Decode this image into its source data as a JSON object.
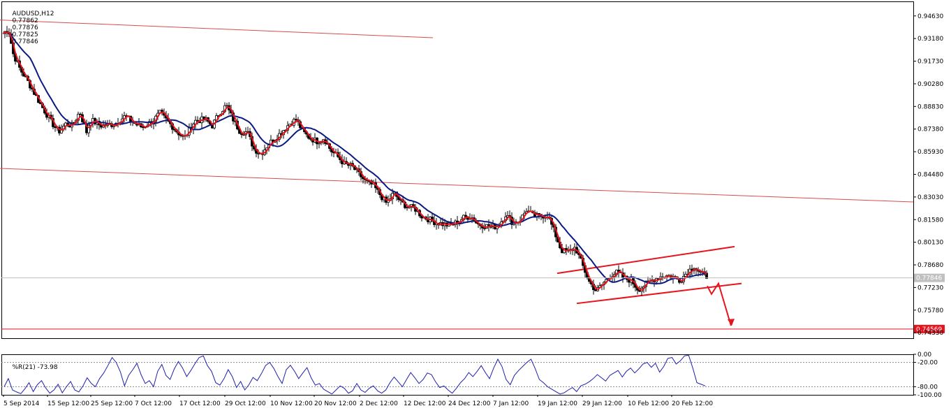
{
  "chart_data": [
    {
      "type": "candlestick",
      "title": "AUDUSD,H12",
      "quote": {
        "open": "0.77862",
        "high": "0.77876",
        "low": "0.77825",
        "close": "0.77846"
      },
      "ylim": [
        0.7398,
        0.9556
      ],
      "yticks": [
        "0.94630",
        "0.93180",
        "0.91730",
        "0.90280",
        "0.88830",
        "0.87380",
        "0.85930",
        "0.84480",
        "0.83030",
        "0.81580",
        "0.80130",
        "0.78680",
        "0.77230",
        "0.75780",
        "0.74330"
      ],
      "xticks": [
        "5 Sep 2014",
        "15 Sep 12:00",
        "25 Sep 12:00",
        "7 Oct 12:00",
        "17 Oct 12:00",
        "29 Oct 12:00",
        "10 Nov 12:00",
        "20 Nov 12:00",
        "2 Dec 12:00",
        "12 Dec 12:00",
        "24 Dec 12:00",
        "7 Jan 12:00",
        "19 Jan 12:00",
        "29 Jan 12:00",
        "10 Feb 12:00",
        "20 Feb 12:00"
      ],
      "price_label": "0.77846",
      "level_label": "0.74569",
      "level_value": 0.74569,
      "grid": false,
      "close_anchors": [
        [
          0,
          0.935
        ],
        [
          8,
          0.938
        ],
        [
          15,
          0.922
        ],
        [
          25,
          0.912
        ],
        [
          35,
          0.905
        ],
        [
          55,
          0.889
        ],
        [
          70,
          0.878
        ],
        [
          80,
          0.872
        ],
        [
          90,
          0.877
        ],
        [
          100,
          0.876
        ],
        [
          110,
          0.885
        ],
        [
          120,
          0.872
        ],
        [
          125,
          0.88
        ],
        [
          140,
          0.876
        ],
        [
          160,
          0.877
        ],
        [
          175,
          0.882
        ],
        [
          190,
          0.877
        ],
        [
          200,
          0.875
        ],
        [
          215,
          0.879
        ],
        [
          225,
          0.884
        ],
        [
          240,
          0.877
        ],
        [
          250,
          0.872
        ],
        [
          260,
          0.868
        ],
        [
          275,
          0.879
        ],
        [
          290,
          0.88
        ],
        [
          300,
          0.876
        ],
        [
          310,
          0.884
        ],
        [
          320,
          0.889
        ],
        [
          330,
          0.88
        ],
        [
          340,
          0.872
        ],
        [
          350,
          0.872
        ],
        [
          360,
          0.861
        ],
        [
          370,
          0.858
        ],
        [
          380,
          0.864
        ],
        [
          395,
          0.87
        ],
        [
          410,
          0.877
        ],
        [
          420,
          0.88
        ],
        [
          430,
          0.872
        ],
        [
          440,
          0.868
        ],
        [
          450,
          0.866
        ],
        [
          460,
          0.868
        ],
        [
          470,
          0.86
        ],
        [
          480,
          0.856
        ],
        [
          490,
          0.851
        ],
        [
          500,
          0.85
        ],
        [
          510,
          0.845
        ],
        [
          520,
          0.84
        ],
        [
          530,
          0.838
        ],
        [
          540,
          0.832
        ],
        [
          550,
          0.826
        ],
        [
          560,
          0.833
        ],
        [
          570,
          0.827
        ],
        [
          580,
          0.824
        ],
        [
          590,
          0.823
        ],
        [
          600,
          0.818
        ],
        [
          610,
          0.816
        ],
        [
          620,
          0.814
        ],
        [
          630,
          0.813
        ],
        [
          640,
          0.812
        ],
        [
          650,
          0.814
        ],
        [
          660,
          0.817
        ],
        [
          670,
          0.818
        ],
        [
          680,
          0.813
        ],
        [
          690,
          0.812
        ],
        [
          700,
          0.811
        ],
        [
          710,
          0.812
        ],
        [
          720,
          0.819
        ],
        [
          730,
          0.814
        ],
        [
          740,
          0.815
        ],
        [
          750,
          0.822
        ],
        [
          760,
          0.818
        ],
        [
          770,
          0.818
        ],
        [
          780,
          0.819
        ],
        [
          790,
          0.808
        ],
        [
          800,
          0.796
        ],
        [
          810,
          0.795
        ],
        [
          820,
          0.798
        ],
        [
          830,
          0.787
        ],
        [
          840,
          0.776
        ],
        [
          850,
          0.77
        ],
        [
          860,
          0.775
        ],
        [
          870,
          0.78
        ],
        [
          880,
          0.782
        ],
        [
          890,
          0.778
        ],
        [
          900,
          0.777
        ],
        [
          910,
          0.771
        ],
        [
          920,
          0.774
        ],
        [
          930,
          0.777
        ],
        [
          940,
          0.779
        ],
        [
          950,
          0.78
        ],
        [
          960,
          0.779
        ],
        [
          970,
          0.777
        ],
        [
          980,
          0.782
        ],
        [
          990,
          0.786
        ],
        [
          1000,
          0.781
        ],
        [
          1010,
          0.779
        ]
      ],
      "trend_lines": [
        {
          "points": [
            [
              0,
              0.9437
            ],
            [
              620,
              0.9323
            ]
          ],
          "color": "#d94c4c"
        },
        {
          "points": [
            [
              0,
              0.8486
            ],
            [
              1308,
              0.8271
            ]
          ],
          "color": "#d94c4c"
        },
        {
          "points": [
            [
              798,
              0.7814
            ],
            [
              1052,
              0.7985
            ]
          ],
          "color": "#e8131c"
        },
        {
          "points": [
            [
              826,
              0.7621
            ],
            [
              1062,
              0.7749
            ]
          ],
          "color": "#e8131c"
        }
      ],
      "forecast_arrow": {
        "points": [
          [
            1013,
            0.7733
          ],
          [
            1019,
            0.7681
          ],
          [
            1029,
            0.7749
          ],
          [
            1047,
            0.7478
          ]
        ],
        "color": "#e8131c"
      },
      "colors": {
        "candle": "#000000",
        "fast_ma": "#e8131c",
        "slow_ma": "#0b1a82",
        "level": "#e8131c",
        "price_box": "#c0c0c0"
      }
    },
    {
      "type": "line",
      "title": "%R(21) -73.98",
      "ylim": [
        -100,
        0
      ],
      "yticks": [
        "0.00",
        "-20.00",
        "-80.00",
        "-100.00"
      ],
      "levels": [
        -20,
        -80
      ],
      "colors": {
        "line": "#1f1fae"
      },
      "values": [
        -80,
        -60,
        -88,
        -93,
        -97,
        -85,
        -70,
        -92,
        -75,
        -65,
        -83,
        -96,
        -88,
        -74,
        -95,
        -80,
        -67,
        -88,
        -93,
        -78,
        -58,
        -72,
        -80,
        -60,
        -46,
        -28,
        -8,
        -20,
        -43,
        -78,
        -52,
        -38,
        -22,
        -50,
        -72,
        -65,
        -80,
        -42,
        -25,
        -52,
        -62,
        -36,
        -18,
        -34,
        -55,
        -40,
        -23,
        -8,
        -4,
        -28,
        -42,
        -70,
        -76,
        -60,
        -38,
        -55,
        -82,
        -67,
        -88,
        -75,
        -57,
        -65,
        -48,
        -28,
        -20,
        -35,
        -55,
        -72,
        -38,
        -27,
        -42,
        -60,
        -46,
        -33,
        -58,
        -76,
        -72,
        -86,
        -92,
        -98,
        -88,
        -78,
        -84,
        -96,
        -90,
        -72,
        -88,
        -94,
        -84,
        -78,
        -90,
        -96,
        -88,
        -70,
        -56,
        -68,
        -80,
        -62,
        -45,
        -58,
        -72,
        -62,
        -46,
        -50,
        -68,
        -82,
        -78,
        -88,
        -96,
        -84,
        -70,
        -60,
        -45,
        -55,
        -42,
        -28,
        -45,
        -60,
        -34,
        -12,
        -30,
        -62,
        -75,
        -52,
        -40,
        -30,
        -20,
        -12,
        -35,
        -62,
        -70,
        -80,
        -86,
        -92,
        -98,
        -95,
        -88,
        -82,
        -92,
        -78,
        -74,
        -68,
        -60,
        -50,
        -58,
        -66,
        -52,
        -46,
        -40,
        -56,
        -42,
        -34,
        -46,
        -36,
        -24,
        -20,
        -32,
        -22,
        -44,
        -30,
        -10,
        -8,
        -24,
        -16,
        -4,
        -2,
        -34,
        -70,
        -74,
        -78
      ],
      "value": -73.98
    }
  ]
}
